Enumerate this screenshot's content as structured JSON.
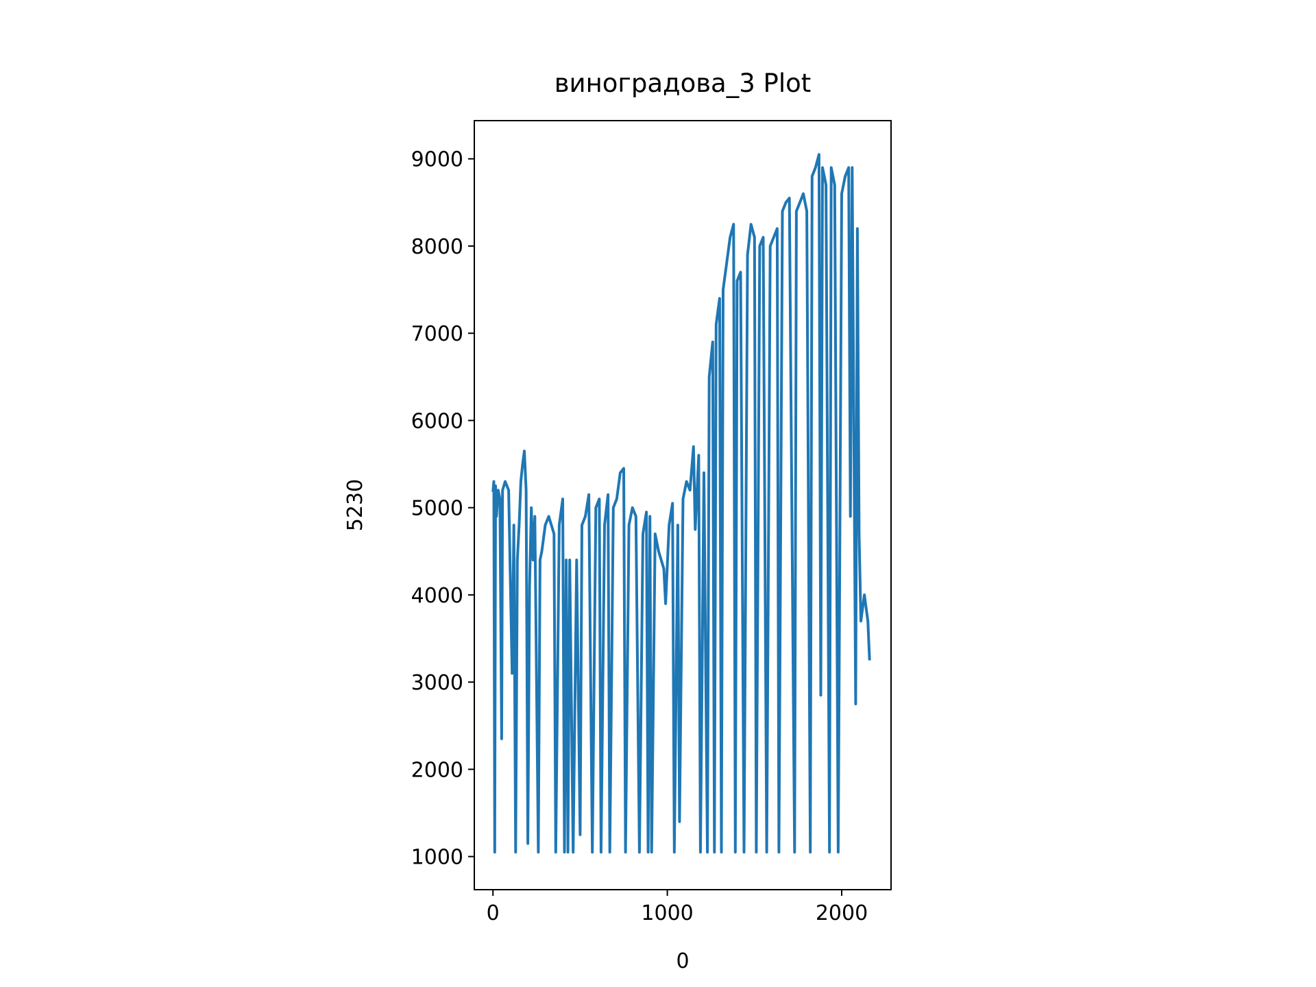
{
  "chart_data": {
    "type": "line",
    "title": "виноградова_3 Plot",
    "x_label": "0",
    "y_label": "5230",
    "xlim": [
      -107,
      2283
    ],
    "ylim": [
      620,
      9438
    ],
    "xticks": [
      0,
      1000,
      2000
    ],
    "yticks": [
      1000,
      2000,
      3000,
      4000,
      5000,
      6000,
      7000,
      8000,
      9000
    ],
    "series": [
      {
        "color": "#1f77b4",
        "x": [
          0,
          5,
          10,
          15,
          20,
          30,
          40,
          50,
          55,
          70,
          80,
          90,
          110,
          120,
          130,
          140,
          150,
          160,
          170,
          180,
          190,
          200,
          210,
          220,
          230,
          240,
          260,
          270,
          280,
          300,
          320,
          350,
          360,
          380,
          400,
          410,
          420,
          430,
          440,
          460,
          480,
          500,
          510,
          530,
          550,
          570,
          590,
          610,
          620,
          640,
          660,
          670,
          690,
          710,
          730,
          750,
          760,
          780,
          800,
          820,
          840,
          860,
          880,
          890,
          900,
          910,
          930,
          950,
          980,
          990,
          1010,
          1030,
          1040,
          1060,
          1070,
          1090,
          1110,
          1130,
          1150,
          1160,
          1180,
          1190,
          1210,
          1230,
          1240,
          1260,
          1270,
          1280,
          1300,
          1310,
          1320,
          1340,
          1360,
          1380,
          1390,
          1400,
          1420,
          1440,
          1460,
          1480,
          1500,
          1510,
          1530,
          1550,
          1570,
          1590,
          1610,
          1630,
          1640,
          1660,
          1680,
          1700,
          1730,
          1740,
          1760,
          1780,
          1800,
          1820,
          1830,
          1850,
          1870,
          1880,
          1890,
          1900,
          1910,
          1930,
          1940,
          1960,
          1980,
          2000,
          2020,
          2040,
          2050,
          2060,
          2080,
          2090,
          2100,
          2110,
          2130,
          2150,
          2160
        ],
        "values": [
          5180,
          5300,
          1050,
          5250,
          4900,
          5200,
          5100,
          2350,
          5200,
          5300,
          5250,
          5200,
          3100,
          4800,
          1050,
          4400,
          4800,
          5300,
          5500,
          5650,
          5200,
          1150,
          4100,
          5000,
          4400,
          4900,
          1050,
          4400,
          4500,
          4800,
          4900,
          4700,
          1050,
          4800,
          5100,
          1050,
          4400,
          1050,
          4400,
          1050,
          4400,
          1250,
          4800,
          4900,
          5150,
          1050,
          5000,
          5100,
          1050,
          4800,
          5150,
          1050,
          5000,
          5100,
          5400,
          5450,
          1050,
          4800,
          5000,
          4900,
          1050,
          4700,
          4950,
          1050,
          4900,
          1050,
          4700,
          4500,
          4300,
          3900,
          4800,
          5050,
          1050,
          4800,
          1400,
          5100,
          5300,
          5200,
          5700,
          4750,
          5600,
          1050,
          5400,
          1050,
          6500,
          6900,
          1050,
          7100,
          7400,
          1050,
          7500,
          7800,
          8100,
          8250,
          1050,
          7600,
          7700,
          1050,
          7900,
          8250,
          8100,
          1050,
          8000,
          8100,
          1050,
          8000,
          8100,
          8200,
          1050,
          8400,
          8500,
          8550,
          1050,
          8400,
          8500,
          8600,
          8400,
          1050,
          8800,
          8900,
          9050,
          2850,
          8900,
          8800,
          8700,
          1050,
          8900,
          8700,
          1050,
          8600,
          8800,
          8900,
          4900,
          8900,
          2750,
          8200,
          4700,
          3700,
          4000,
          3700,
          3250
        ]
      }
    ]
  }
}
